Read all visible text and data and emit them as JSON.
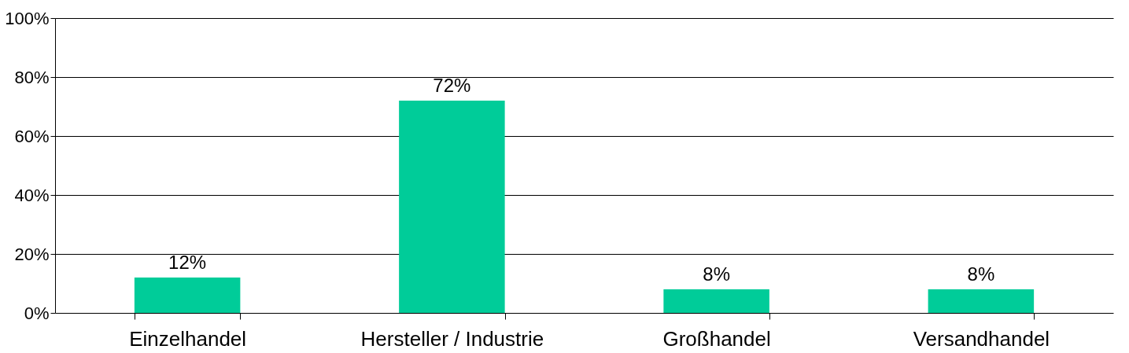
{
  "chart_data": {
    "type": "bar",
    "categories": [
      "Einzelhandel",
      "Hersteller / Industrie",
      "Großhandel",
      "Versandhandel"
    ],
    "values": [
      12,
      72,
      8,
      8
    ],
    "value_labels": [
      "12%",
      "72%",
      "8%",
      "8%"
    ],
    "color": "#00cc99",
    "ylim": [
      0,
      100
    ],
    "yticks": [
      {
        "value": 0,
        "label": "0%"
      },
      {
        "value": 20,
        "label": "20%"
      },
      {
        "value": 40,
        "label": "40%"
      },
      {
        "value": 60,
        "label": "60%"
      },
      {
        "value": 80,
        "label": "80%"
      },
      {
        "value": 100,
        "label": "100%"
      }
    ],
    "grid": true
  }
}
